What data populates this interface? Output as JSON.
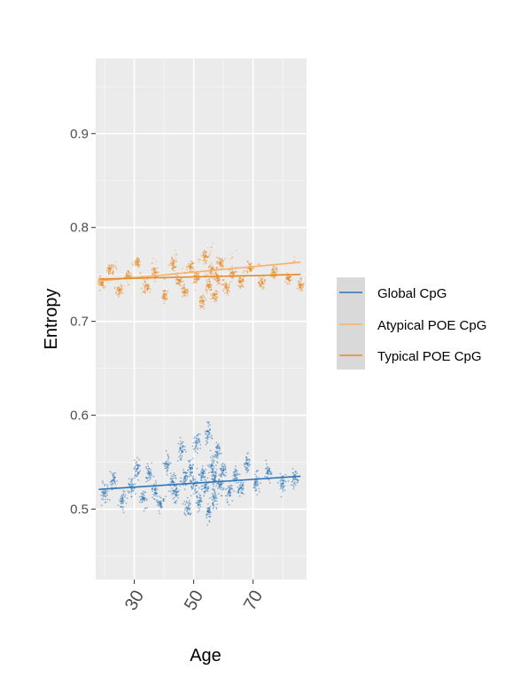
{
  "chart_data": {
    "type": "scatter",
    "xlabel": "Age",
    "ylabel": "Entropy",
    "xlim": [
      17,
      88
    ],
    "ylim": [
      0.425,
      0.98
    ],
    "x_ticks": [
      30,
      50,
      70
    ],
    "y_ticks": [
      0.5,
      0.6,
      0.7,
      0.8,
      0.9
    ],
    "x_tick_labels": [
      "30",
      "50",
      "70"
    ],
    "y_tick_labels": [
      "0.5",
      "0.6",
      "0.7",
      "0.8",
      "0.9"
    ],
    "grid": true,
    "legend_position": "right",
    "series": [
      {
        "name": "Global CpG",
        "color": "#2e75b6",
        "trend": {
          "x": [
            18,
            86
          ],
          "y": [
            0.521,
            0.535
          ]
        },
        "points": [
          [
            20,
            0.517
          ],
          [
            23,
            0.531
          ],
          [
            26,
            0.509
          ],
          [
            29,
            0.524
          ],
          [
            31,
            0.543
          ],
          [
            33,
            0.512
          ],
          [
            35,
            0.538
          ],
          [
            37,
            0.521
          ],
          [
            39,
            0.506
          ],
          [
            41,
            0.548
          ],
          [
            43,
            0.529
          ],
          [
            44,
            0.515
          ],
          [
            46,
            0.562
          ],
          [
            47,
            0.533
          ],
          [
            48,
            0.501
          ],
          [
            49,
            0.544
          ],
          [
            50,
            0.527
          ],
          [
            51,
            0.571
          ],
          [
            52,
            0.509
          ],
          [
            53,
            0.538
          ],
          [
            54,
            0.523
          ],
          [
            55,
            0.583
          ],
          [
            55,
            0.497
          ],
          [
            56,
            0.546
          ],
          [
            57,
            0.532
          ],
          [
            57,
            0.512
          ],
          [
            58,
            0.561
          ],
          [
            59,
            0.526
          ],
          [
            60,
            0.541
          ],
          [
            62,
            0.518
          ],
          [
            64,
            0.536
          ],
          [
            66,
            0.523
          ],
          [
            68,
            0.548
          ],
          [
            71,
            0.529
          ],
          [
            75,
            0.539
          ],
          [
            80,
            0.527
          ],
          [
            84,
            0.534
          ]
        ]
      },
      {
        "name": "Atypical POE CpG",
        "color": "#f5b16a",
        "trend": {
          "x": [
            18,
            86
          ],
          "y": [
            0.743,
            0.763
          ]
        },
        "points": [
          [
            20,
            0.744
          ],
          [
            24,
            0.756
          ],
          [
            28,
            0.739
          ],
          [
            32,
            0.751
          ],
          [
            36,
            0.762
          ],
          [
            40,
            0.746
          ],
          [
            44,
            0.771
          ],
          [
            47,
            0.752
          ],
          [
            50,
            0.741
          ],
          [
            52,
            0.766
          ],
          [
            54,
            0.749
          ],
          [
            56,
            0.779
          ],
          [
            58,
            0.757
          ],
          [
            60,
            0.744
          ],
          [
            63,
            0.768
          ],
          [
            67,
            0.753
          ],
          [
            72,
            0.761
          ],
          [
            78,
            0.756
          ],
          [
            84,
            0.764
          ]
        ]
      },
      {
        "name": "Typical POE CpG",
        "color": "#e58a25",
        "trend": {
          "x": [
            18,
            86
          ],
          "y": [
            0.745,
            0.75
          ]
        },
        "points": [
          [
            19,
            0.741
          ],
          [
            22,
            0.756
          ],
          [
            25,
            0.733
          ],
          [
            28,
            0.749
          ],
          [
            31,
            0.763
          ],
          [
            34,
            0.738
          ],
          [
            37,
            0.752
          ],
          [
            40,
            0.727
          ],
          [
            43,
            0.761
          ],
          [
            45,
            0.744
          ],
          [
            47,
            0.732
          ],
          [
            49,
            0.758
          ],
          [
            51,
            0.747
          ],
          [
            53,
            0.721
          ],
          [
            54,
            0.769
          ],
          [
            55,
            0.739
          ],
          [
            56,
            0.754
          ],
          [
            57,
            0.728
          ],
          [
            58,
            0.746
          ],
          [
            59,
            0.762
          ],
          [
            61,
            0.736
          ],
          [
            63,
            0.751
          ],
          [
            66,
            0.743
          ],
          [
            69,
            0.757
          ],
          [
            73,
            0.741
          ],
          [
            77,
            0.752
          ],
          [
            82,
            0.746
          ],
          [
            86,
            0.739
          ]
        ]
      }
    ]
  }
}
